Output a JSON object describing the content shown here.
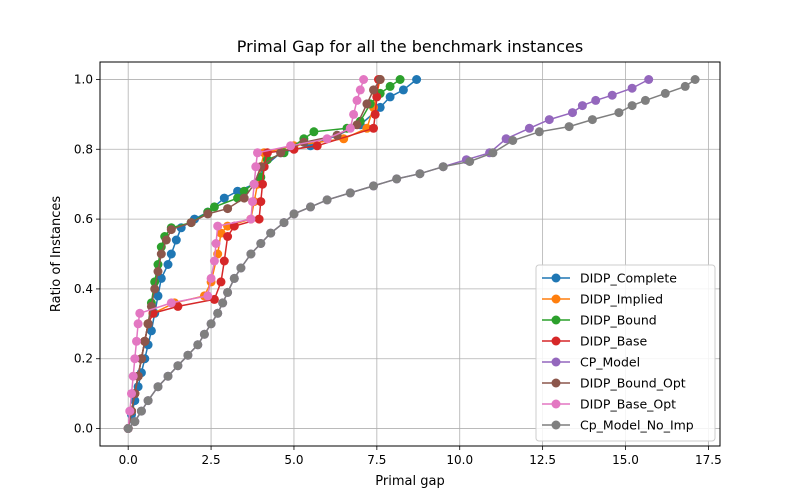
{
  "chart_data": {
    "type": "line",
    "title": "Primal Gap for all the benchmark instances",
    "xlabel": "Primal gap",
    "ylabel": "Ratio of Instances",
    "xlim": [
      -0.85,
      17.85
    ],
    "ylim": [
      -0.05,
      1.05
    ],
    "xticks": [
      0.0,
      2.5,
      5.0,
      7.5,
      10.0,
      12.5,
      15.0,
      17.5
    ],
    "xtick_labels": [
      "0.0",
      "2.5",
      "5.0",
      "7.5",
      "10.0",
      "12.5",
      "15.0",
      "17.5"
    ],
    "yticks": [
      0.0,
      0.2,
      0.4,
      0.6,
      0.8,
      1.0
    ],
    "ytick_labels": [
      "0.0",
      "0.2",
      "0.4",
      "0.6",
      "0.8",
      "1.0"
    ],
    "grid": true,
    "legend_position": "lower-right",
    "series": [
      {
        "name": "DIDP_Complete",
        "color": "#1f77b4",
        "points": [
          [
            0,
            0
          ],
          [
            0.1,
            0.04
          ],
          [
            0.2,
            0.08
          ],
          [
            0.3,
            0.12
          ],
          [
            0.4,
            0.16
          ],
          [
            0.5,
            0.2
          ],
          [
            0.6,
            0.24
          ],
          [
            0.7,
            0.28
          ],
          [
            0.8,
            0.33
          ],
          [
            0.9,
            0.38
          ],
          [
            1.0,
            0.43
          ],
          [
            1.2,
            0.47
          ],
          [
            1.3,
            0.5
          ],
          [
            1.45,
            0.54
          ],
          [
            1.6,
            0.575
          ],
          [
            2.0,
            0.6
          ],
          [
            2.4,
            0.62
          ],
          [
            2.9,
            0.66
          ],
          [
            3.3,
            0.68
          ],
          [
            3.8,
            0.7
          ],
          [
            4.1,
            0.75
          ],
          [
            4.6,
            0.79
          ],
          [
            5.5,
            0.81
          ],
          [
            6.3,
            0.84
          ],
          [
            7.0,
            0.87
          ],
          [
            7.6,
            0.92
          ],
          [
            7.9,
            0.95
          ],
          [
            8.3,
            0.97
          ],
          [
            8.7,
            1.0
          ]
        ]
      },
      {
        "name": "DIDP_Implied",
        "color": "#ff7f0e",
        "points": [
          [
            0,
            0
          ],
          [
            0.1,
            0.05
          ],
          [
            0.2,
            0.1
          ],
          [
            0.3,
            0.15
          ],
          [
            0.4,
            0.2
          ],
          [
            0.5,
            0.25
          ],
          [
            0.6,
            0.3
          ],
          [
            0.75,
            0.33
          ],
          [
            1.4,
            0.36
          ],
          [
            2.3,
            0.38
          ],
          [
            2.5,
            0.42
          ],
          [
            2.7,
            0.5
          ],
          [
            2.8,
            0.56
          ],
          [
            3.0,
            0.58
          ],
          [
            3.7,
            0.6
          ],
          [
            3.8,
            0.65
          ],
          [
            3.9,
            0.7
          ],
          [
            4.0,
            0.75
          ],
          [
            4.1,
            0.79
          ],
          [
            5.0,
            0.81
          ],
          [
            6.5,
            0.83
          ],
          [
            7.2,
            0.86
          ],
          [
            7.4,
            0.92
          ],
          [
            7.5,
            0.96
          ],
          [
            7.6,
            1.0
          ]
        ]
      },
      {
        "name": "DIDP_Bound",
        "color": "#2ca02c",
        "points": [
          [
            0,
            0
          ],
          [
            0.1,
            0.05
          ],
          [
            0.2,
            0.1
          ],
          [
            0.3,
            0.15
          ],
          [
            0.4,
            0.2
          ],
          [
            0.5,
            0.25
          ],
          [
            0.6,
            0.3
          ],
          [
            0.7,
            0.36
          ],
          [
            0.8,
            0.42
          ],
          [
            0.9,
            0.47
          ],
          [
            1.0,
            0.52
          ],
          [
            1.1,
            0.55
          ],
          [
            1.3,
            0.575
          ],
          [
            1.9,
            0.59
          ],
          [
            2.4,
            0.62
          ],
          [
            2.6,
            0.635
          ],
          [
            3.3,
            0.66
          ],
          [
            3.5,
            0.68
          ],
          [
            4.0,
            0.72
          ],
          [
            4.2,
            0.77
          ],
          [
            4.7,
            0.79
          ],
          [
            5.3,
            0.83
          ],
          [
            5.6,
            0.85
          ],
          [
            6.6,
            0.86
          ],
          [
            7.0,
            0.88
          ],
          [
            7.3,
            0.93
          ],
          [
            7.6,
            0.96
          ],
          [
            7.9,
            0.98
          ],
          [
            8.2,
            1.0
          ]
        ]
      },
      {
        "name": "DIDP_Base",
        "color": "#d62728",
        "points": [
          [
            0,
            0
          ],
          [
            0.1,
            0.05
          ],
          [
            0.2,
            0.1
          ],
          [
            0.3,
            0.15
          ],
          [
            0.4,
            0.2
          ],
          [
            0.5,
            0.25
          ],
          [
            0.6,
            0.3
          ],
          [
            0.75,
            0.33
          ],
          [
            1.5,
            0.35
          ],
          [
            2.6,
            0.37
          ],
          [
            2.8,
            0.42
          ],
          [
            2.9,
            0.48
          ],
          [
            3.0,
            0.55
          ],
          [
            3.2,
            0.58
          ],
          [
            3.95,
            0.6
          ],
          [
            4.0,
            0.65
          ],
          [
            4.05,
            0.7
          ],
          [
            4.1,
            0.75
          ],
          [
            4.2,
            0.79
          ],
          [
            5.0,
            0.8
          ],
          [
            5.7,
            0.81
          ],
          [
            7.4,
            0.86
          ],
          [
            7.45,
            0.9
          ],
          [
            7.5,
            0.95
          ],
          [
            7.55,
            1.0
          ]
        ]
      },
      {
        "name": "CP_Model",
        "color": "#9467bd",
        "points": [
          [
            0,
            0
          ],
          [
            0.2,
            0.02
          ],
          [
            0.4,
            0.05
          ],
          [
            0.6,
            0.08
          ],
          [
            0.9,
            0.12
          ],
          [
            1.2,
            0.15
          ],
          [
            1.5,
            0.18
          ],
          [
            1.8,
            0.21
          ],
          [
            2.1,
            0.24
          ],
          [
            2.3,
            0.27
          ],
          [
            2.5,
            0.3
          ],
          [
            2.7,
            0.33
          ],
          [
            2.85,
            0.36
          ],
          [
            3.0,
            0.39
          ],
          [
            3.2,
            0.43
          ],
          [
            3.4,
            0.46
          ],
          [
            3.7,
            0.5
          ],
          [
            4.0,
            0.53
          ],
          [
            4.3,
            0.56
          ],
          [
            4.7,
            0.59
          ],
          [
            5.0,
            0.615
          ],
          [
            5.5,
            0.635
          ],
          [
            6.0,
            0.655
          ],
          [
            6.7,
            0.675
          ],
          [
            7.4,
            0.695
          ],
          [
            8.1,
            0.715
          ],
          [
            8.8,
            0.73
          ],
          [
            9.5,
            0.75
          ],
          [
            10.2,
            0.77
          ],
          [
            10.9,
            0.79
          ],
          [
            11.4,
            0.83
          ],
          [
            12.1,
            0.86
          ],
          [
            12.7,
            0.885
          ],
          [
            13.4,
            0.905
          ],
          [
            13.7,
            0.925
          ],
          [
            14.1,
            0.94
          ],
          [
            14.6,
            0.955
          ],
          [
            15.2,
            0.975
          ],
          [
            15.7,
            1.0
          ]
        ]
      },
      {
        "name": "DIDP_Bound_Opt",
        "color": "#8c564b",
        "points": [
          [
            0,
            0
          ],
          [
            0.1,
            0.05
          ],
          [
            0.2,
            0.1
          ],
          [
            0.3,
            0.15
          ],
          [
            0.4,
            0.2
          ],
          [
            0.5,
            0.25
          ],
          [
            0.6,
            0.3
          ],
          [
            0.7,
            0.35
          ],
          [
            0.8,
            0.4
          ],
          [
            0.9,
            0.45
          ],
          [
            1.0,
            0.5
          ],
          [
            1.15,
            0.54
          ],
          [
            1.3,
            0.57
          ],
          [
            1.9,
            0.59
          ],
          [
            2.4,
            0.615
          ],
          [
            3.0,
            0.63
          ],
          [
            3.5,
            0.66
          ],
          [
            3.8,
            0.7
          ],
          [
            4.0,
            0.75
          ],
          [
            4.6,
            0.79
          ],
          [
            5.3,
            0.82
          ],
          [
            6.3,
            0.84
          ],
          [
            6.9,
            0.87
          ],
          [
            7.2,
            0.93
          ],
          [
            7.4,
            0.97
          ],
          [
            7.6,
            1.0
          ]
        ]
      },
      {
        "name": "DIDP_Base_Opt",
        "color": "#e377c2",
        "points": [
          [
            0,
            0
          ],
          [
            0.05,
            0.05
          ],
          [
            0.1,
            0.1
          ],
          [
            0.15,
            0.15
          ],
          [
            0.2,
            0.2
          ],
          [
            0.25,
            0.25
          ],
          [
            0.3,
            0.3
          ],
          [
            0.35,
            0.33
          ],
          [
            1.3,
            0.36
          ],
          [
            2.4,
            0.38
          ],
          [
            2.5,
            0.43
          ],
          [
            2.6,
            0.48
          ],
          [
            2.65,
            0.53
          ],
          [
            2.7,
            0.58
          ],
          [
            3.7,
            0.6
          ],
          [
            3.75,
            0.65
          ],
          [
            3.8,
            0.7
          ],
          [
            3.85,
            0.75
          ],
          [
            3.9,
            0.79
          ],
          [
            4.9,
            0.81
          ],
          [
            6.0,
            0.83
          ],
          [
            6.7,
            0.86
          ],
          [
            6.8,
            0.9
          ],
          [
            6.9,
            0.94
          ],
          [
            7.0,
            0.97
          ],
          [
            7.1,
            1.0
          ]
        ]
      },
      {
        "name": "Cp_Model_No_Imp",
        "color": "#7f7f7f",
        "points": [
          [
            0,
            0
          ],
          [
            0.2,
            0.02
          ],
          [
            0.4,
            0.05
          ],
          [
            0.6,
            0.08
          ],
          [
            0.9,
            0.12
          ],
          [
            1.2,
            0.15
          ],
          [
            1.5,
            0.18
          ],
          [
            1.8,
            0.21
          ],
          [
            2.1,
            0.24
          ],
          [
            2.3,
            0.27
          ],
          [
            2.5,
            0.3
          ],
          [
            2.7,
            0.33
          ],
          [
            2.85,
            0.36
          ],
          [
            3.0,
            0.39
          ],
          [
            3.2,
            0.43
          ],
          [
            3.4,
            0.46
          ],
          [
            3.7,
            0.5
          ],
          [
            4.0,
            0.53
          ],
          [
            4.3,
            0.56
          ],
          [
            4.7,
            0.59
          ],
          [
            5.0,
            0.615
          ],
          [
            5.5,
            0.635
          ],
          [
            6.0,
            0.655
          ],
          [
            6.7,
            0.675
          ],
          [
            7.4,
            0.695
          ],
          [
            8.1,
            0.715
          ],
          [
            8.8,
            0.73
          ],
          [
            9.5,
            0.75
          ],
          [
            10.3,
            0.765
          ],
          [
            11.0,
            0.79
          ],
          [
            11.6,
            0.825
          ],
          [
            12.4,
            0.85
          ],
          [
            13.3,
            0.865
          ],
          [
            14.0,
            0.885
          ],
          [
            14.8,
            0.905
          ],
          [
            15.2,
            0.925
          ],
          [
            15.6,
            0.94
          ],
          [
            16.2,
            0.96
          ],
          [
            16.8,
            0.98
          ],
          [
            17.1,
            1.0
          ]
        ]
      }
    ]
  }
}
